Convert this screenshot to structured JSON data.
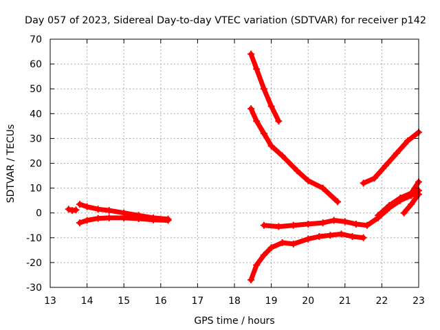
{
  "chart_data": {
    "type": "scatter",
    "title": "Day 057 of 2023, Sidereal Day-to-day VTEC variation (SDTVAR) for receiver p142",
    "xlabel": "GPS time / hours",
    "ylabel": "SDTVAR / TECUs",
    "xlim": [
      13,
      23
    ],
    "ylim": [
      -30,
      70
    ],
    "xticks": [
      13,
      14,
      15,
      16,
      17,
      18,
      19,
      20,
      21,
      22,
      23
    ],
    "yticks": [
      -30,
      -20,
      -10,
      0,
      10,
      20,
      30,
      40,
      50,
      60,
      70
    ],
    "grid": true,
    "legend": "none",
    "marker": "plus",
    "color": "#ff0000",
    "series": [
      {
        "x": [
          13.5,
          13.6,
          13.7
        ],
        "y": [
          1.5,
          1.0,
          1.2
        ]
      },
      {
        "x": [
          13.8,
          14.0,
          14.3,
          14.6,
          15.0,
          15.4,
          15.8,
          16.2
        ],
        "y": [
          3.5,
          2.5,
          1.5,
          1.0,
          0.0,
          -1.0,
          -2.0,
          -2.5
        ]
      },
      {
        "x": [
          13.8,
          14.0,
          14.3,
          14.6,
          15.0,
          15.4,
          15.8,
          16.2
        ],
        "y": [
          -4.0,
          -3.0,
          -2.2,
          -2.0,
          -2.0,
          -2.3,
          -2.8,
          -3.0
        ]
      },
      {
        "x": [
          18.45,
          18.6,
          18.8,
          19.0,
          19.2
        ],
        "y": [
          64.0,
          58.0,
          50.0,
          43.0,
          37.0
        ]
      },
      {
        "x": [
          18.45,
          18.6,
          18.8,
          19.0,
          19.3,
          19.7,
          20.0,
          20.4,
          20.8
        ],
        "y": [
          42.0,
          37.0,
          32.0,
          27.0,
          23.0,
          17.0,
          13.0,
          10.0,
          4.5
        ]
      },
      {
        "x": [
          18.45,
          18.6,
          18.8,
          19.0,
          19.3,
          19.6,
          20.0,
          20.3,
          20.6,
          20.9,
          21.2,
          21.5
        ],
        "y": [
          -27.0,
          -21.0,
          -17.0,
          -14.0,
          -12.0,
          -12.5,
          -10.5,
          -9.5,
          -9.0,
          -8.5,
          -9.5,
          -10.0
        ]
      },
      {
        "x": [
          18.8,
          19.2,
          19.6,
          20.0,
          20.4,
          20.7,
          21.0,
          21.3,
          21.6,
          21.9,
          22.2,
          22.5,
          22.8,
          23.0
        ],
        "y": [
          -5.0,
          -5.5,
          -5.0,
          -4.5,
          -4.0,
          -3.0,
          -3.5,
          -4.5,
          -5.0,
          -2.0,
          2.0,
          5.0,
          7.0,
          9.0
        ]
      },
      {
        "x": [
          21.5,
          21.8,
          22.1,
          22.4,
          22.7,
          23.0
        ],
        "y": [
          12.0,
          14.0,
          19.0,
          24.0,
          29.0,
          32.5
        ]
      },
      {
        "x": [
          21.9,
          22.2,
          22.5,
          22.8,
          23.0
        ],
        "y": [
          -1.0,
          3.0,
          6.0,
          8.0,
          12.5
        ]
      },
      {
        "x": [
          22.6,
          22.8,
          23.0
        ],
        "y": [
          0.0,
          3.5,
          7.5
        ]
      }
    ]
  }
}
